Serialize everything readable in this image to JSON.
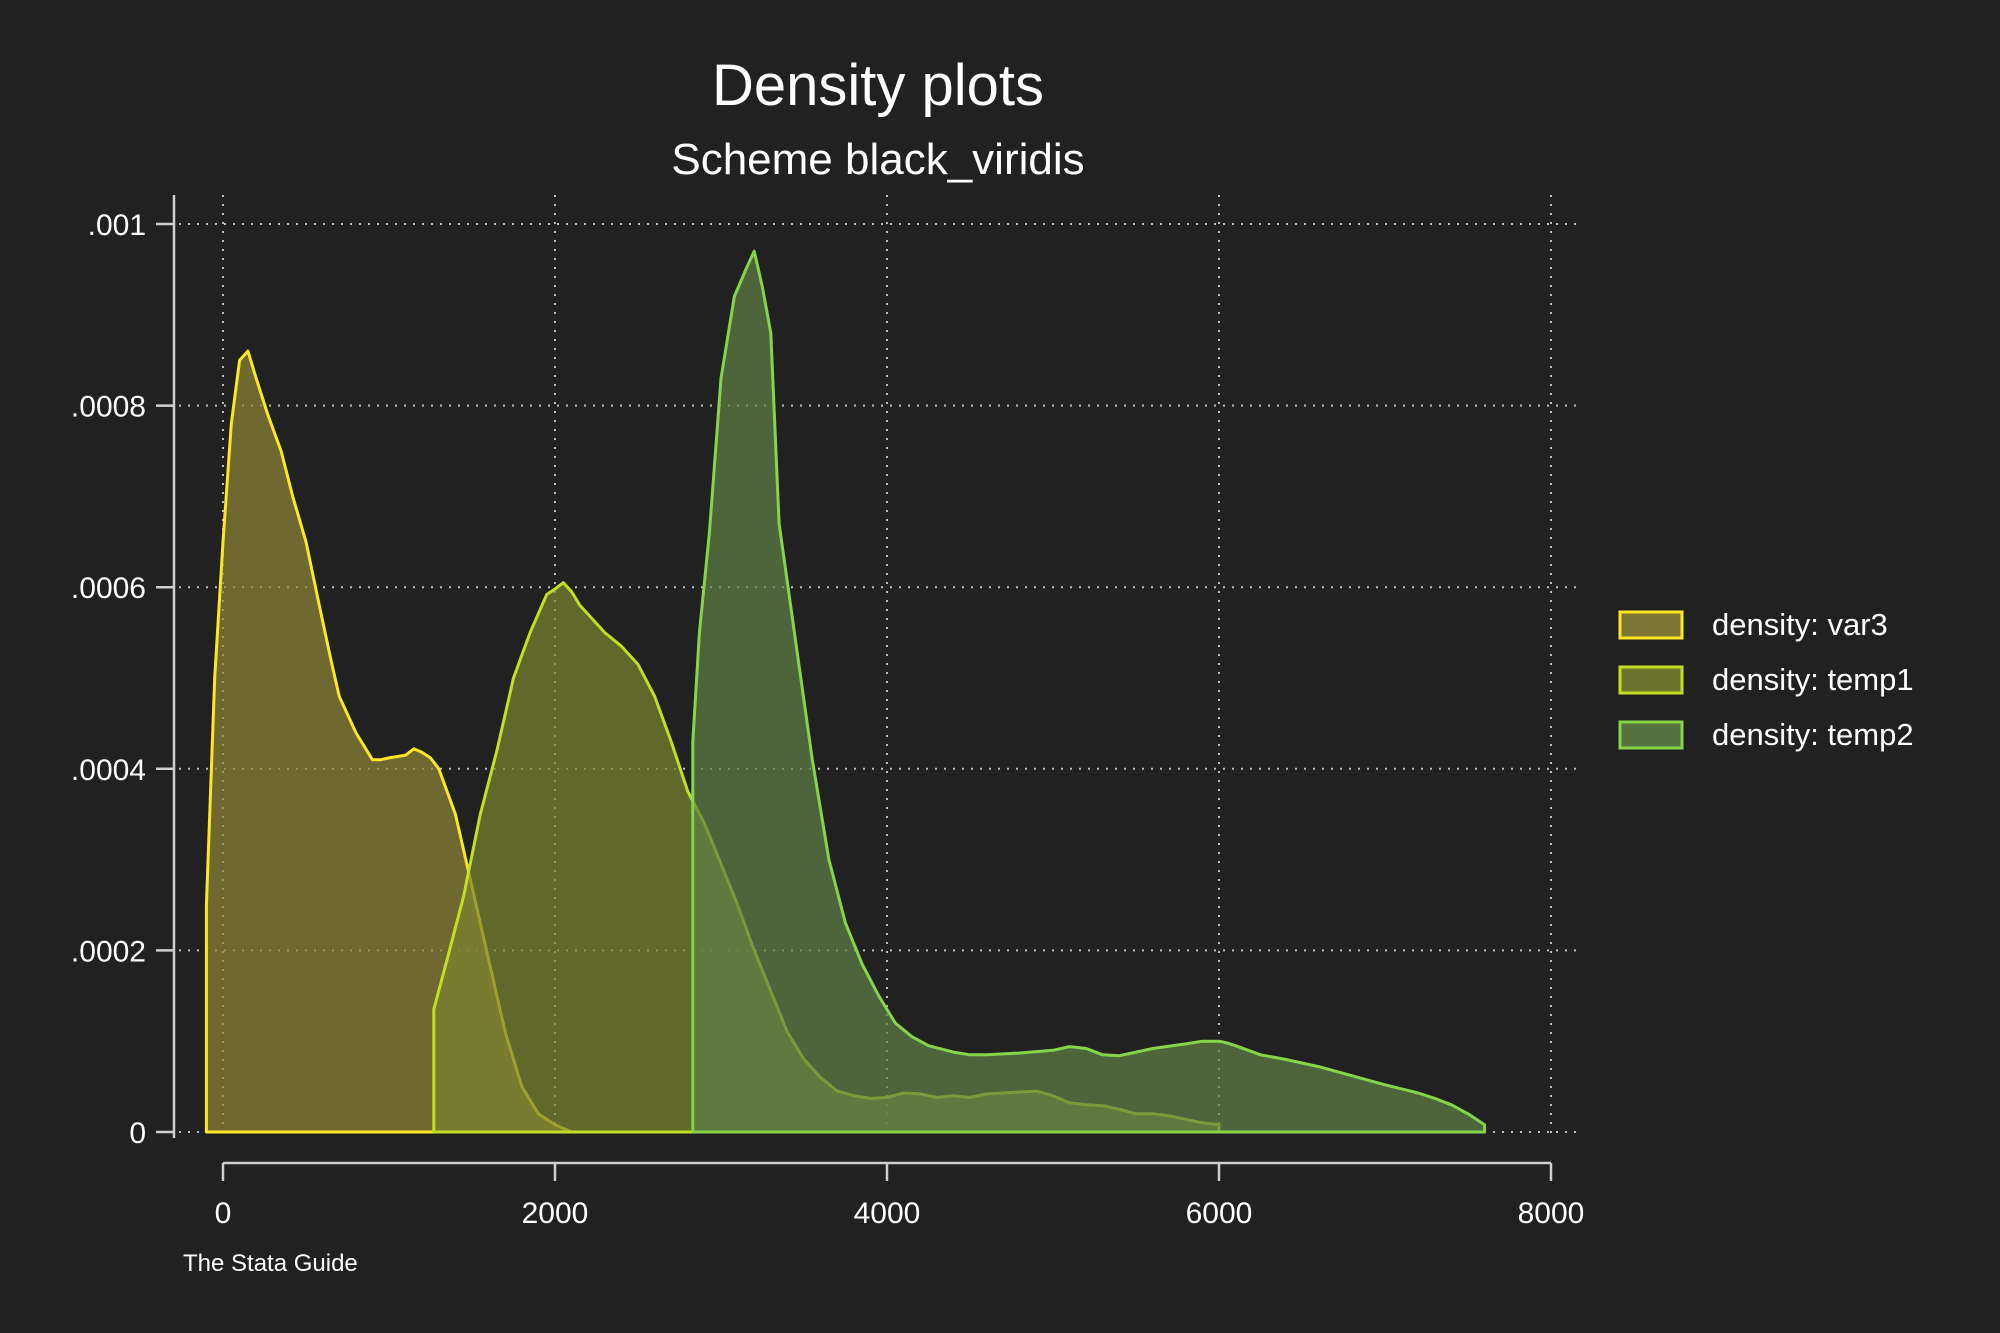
{
  "chart_data": {
    "type": "area",
    "title": "Density plots",
    "subtitle": "Scheme black_viridis",
    "note": "The Stata Guide",
    "xlim": [
      0,
      8000
    ],
    "ylim": [
      0,
      0.001
    ],
    "x_ticks": [
      0,
      2000,
      4000,
      6000,
      8000
    ],
    "x_tick_labels": [
      "0",
      "2000",
      "4000",
      "6000",
      "8000"
    ],
    "y_ticks": [
      0,
      0.0002,
      0.0004,
      0.0006,
      0.0008,
      0.001
    ],
    "y_tick_labels": [
      "0",
      ".0002",
      ".0004",
      ".0006",
      ".0008",
      ".001"
    ],
    "grid": true,
    "legend_position": "right",
    "colors": {
      "background": "#212121",
      "var3": "#fde725",
      "temp1": "#c2df23",
      "temp2": "#86d549"
    },
    "series": [
      {
        "name": "density: var3",
        "color": "#fde725",
        "fill": "#8e8538",
        "x": [
          -100,
          -50,
          0,
          50,
          100,
          150,
          200,
          270,
          350,
          420,
          500,
          580,
          650,
          700,
          800,
          900,
          950,
          1000,
          1100,
          1150,
          1200,
          1250,
          1300,
          1350,
          1400,
          1500,
          1600,
          1700,
          1800,
          1900,
          2000,
          2100
        ],
        "y": [
          0.00025,
          0.0005,
          0.00065,
          0.00078,
          0.00085,
          0.00086,
          0.00083,
          0.00079,
          0.00075,
          0.0007,
          0.00065,
          0.00058,
          0.00052,
          0.00048,
          0.00044,
          0.00041,
          0.00041,
          0.000412,
          0.000415,
          0.000422,
          0.000418,
          0.000412,
          0.0004,
          0.000375,
          0.00035,
          0.00027,
          0.00019,
          0.00011,
          5e-05,
          2e-05,
          8e-06,
          0
        ]
      },
      {
        "name": "density: temp1",
        "color": "#c2df23",
        "fill": "#7a8330",
        "x": [
          1270,
          1350,
          1450,
          1550,
          1650,
          1750,
          1850,
          1950,
          2000,
          2050,
          2100,
          2150,
          2200,
          2300,
          2400,
          2500,
          2600,
          2700,
          2800,
          2900,
          3000,
          3100,
          3200,
          3300,
          3400,
          3500,
          3600,
          3700,
          3800,
          3900,
          4000,
          4100,
          4200,
          4300,
          4400,
          4500,
          4600,
          4700,
          4800,
          4900,
          5000,
          5100,
          5200,
          5300,
          5400,
          5500,
          5600,
          5700,
          5800,
          5900,
          6000
        ],
        "y": [
          0.000135,
          0.00019,
          0.00026,
          0.00035,
          0.00042,
          0.0005,
          0.00055,
          0.000592,
          0.000598,
          0.000605,
          0.000595,
          0.00058,
          0.00057,
          0.00055,
          0.000535,
          0.000515,
          0.00048,
          0.00043,
          0.000375,
          0.00034,
          0.000295,
          0.00025,
          0.0002,
          0.000155,
          0.00011,
          8e-05,
          6e-05,
          4.5e-05,
          4e-05,
          3.7e-05,
          3.8e-05,
          4.3e-05,
          4.2e-05,
          3.8e-05,
          4e-05,
          3.8e-05,
          4.2e-05,
          4.3e-05,
          4.4e-05,
          4.5e-05,
          4e-05,
          3.2e-05,
          3e-05,
          2.9e-05,
          2.5e-05,
          2e-05,
          2e-05,
          1.8e-05,
          1.4e-05,
          1e-05,
          8e-06
        ]
      },
      {
        "name": "density: temp2",
        "color": "#86d549",
        "fill": "#5f7f45",
        "x": [
          2830,
          2830,
          2870,
          2930,
          3000,
          3080,
          3150,
          3200,
          3250,
          3300,
          3350,
          3450,
          3550,
          3650,
          3750,
          3850,
          3950,
          4050,
          4150,
          4250,
          4400,
          4500,
          4600,
          4800,
          5000,
          5100,
          5200,
          5300,
          5400,
          5500,
          5600,
          5800,
          5900,
          6000,
          6050,
          6100,
          6250,
          6400,
          6600,
          6800,
          7000,
          7200,
          7300,
          7400,
          7500,
          7600
        ],
        "y": [
          0,
          0.00043,
          0.00055,
          0.00066,
          0.00083,
          0.00092,
          0.00095,
          0.00097,
          0.00093,
          0.00088,
          0.00067,
          0.00054,
          0.00041,
          0.0003,
          0.00023,
          0.000185,
          0.00015,
          0.00012,
          0.000105,
          9.5e-05,
          8.8e-05,
          8.5e-05,
          8.5e-05,
          8.7e-05,
          9e-05,
          9.4e-05,
          9.2e-05,
          8.5e-05,
          8.4e-05,
          8.8e-05,
          9.2e-05,
          9.7e-05,
          0.0001,
          0.0001,
          9.8e-05,
          9.5e-05,
          8.5e-05,
          8e-05,
          7.2e-05,
          6.2e-05,
          5.2e-05,
          4.3e-05,
          3.7e-05,
          3e-05,
          2e-05,
          8e-06
        ]
      }
    ]
  }
}
